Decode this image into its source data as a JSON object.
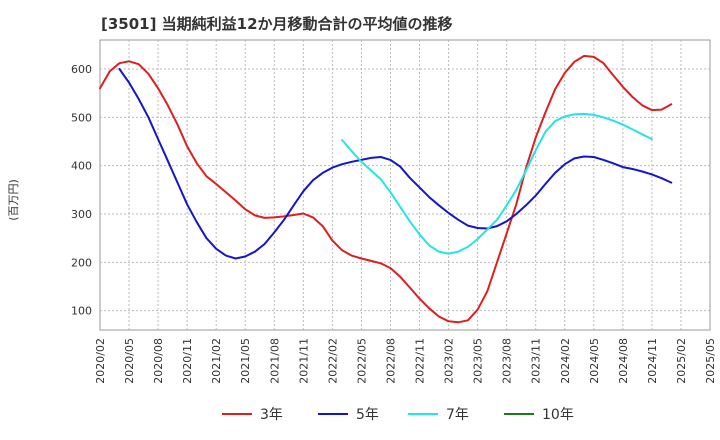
{
  "title": "[3501]  当期純利益12か月移動合計の平均値の推移",
  "chart_data": {
    "type": "line",
    "ylabel": "(百万円)",
    "ylim": [
      60,
      660
    ],
    "yticks": [
      100,
      200,
      300,
      400,
      500,
      600
    ],
    "xticks": [
      "2020/02",
      "2020/05",
      "2020/08",
      "2020/11",
      "2021/02",
      "2021/05",
      "2021/08",
      "2021/11",
      "2022/02",
      "2022/05",
      "2022/08",
      "2022/11",
      "2023/02",
      "2023/05",
      "2023/08",
      "2023/11",
      "2024/02",
      "2024/05",
      "2024/08",
      "2024/11",
      "2025/02",
      "2025/05"
    ],
    "grid": true,
    "legend_position": "bottom",
    "series": [
      {
        "name": "3年",
        "color": "#dd1f1f",
        "start": "2020/02",
        "values": [
          560,
          595,
          612,
          616,
          610,
          590,
          560,
          525,
          485,
          440,
          405,
          378,
          362,
          345,
          328,
          310,
          297,
          292,
          293,
          295,
          298,
          301,
          293,
          275,
          245,
          225,
          214,
          208,
          203,
          198,
          188,
          170,
          148,
          125,
          105,
          88,
          78,
          76,
          80,
          102,
          140,
          200,
          260,
          320,
          395,
          458,
          510,
          558,
          592,
          615,
          627,
          625,
          612,
          587,
          563,
          542,
          525,
          515,
          516,
          527
        ]
      },
      {
        "name": "5年",
        "color": "#1515cc",
        "start": "2020/02",
        "values": [
          null,
          null,
          600,
          572,
          538,
          500,
          455,
          410,
          365,
          320,
          283,
          250,
          228,
          214,
          208,
          212,
          222,
          238,
          262,
          288,
          318,
          347,
          370,
          385,
          396,
          403,
          408,
          412,
          416,
          418,
          412,
          398,
          375,
          355,
          335,
          318,
          302,
          288,
          276,
          271,
          270,
          275,
          285,
          300,
          318,
          338,
          362,
          385,
          403,
          415,
          419,
          418,
          412,
          405,
          397,
          393,
          388,
          382,
          374,
          365
        ]
      },
      {
        "name": "7年",
        "color": "#22e5e5",
        "start": "2020/02",
        "values": [
          null,
          null,
          null,
          null,
          null,
          null,
          null,
          null,
          null,
          null,
          null,
          null,
          null,
          null,
          null,
          null,
          null,
          null,
          null,
          null,
          null,
          null,
          null,
          null,
          null,
          453,
          430,
          408,
          390,
          372,
          345,
          315,
          285,
          258,
          235,
          222,
          218,
          222,
          232,
          248,
          268,
          288,
          318,
          350,
          390,
          432,
          470,
          492,
          502,
          506,
          507,
          505,
          500,
          493,
          485,
          475,
          465,
          455
        ]
      },
      {
        "name": "10年",
        "color": "#1d7a1d",
        "start": "2020/02",
        "values": []
      }
    ]
  }
}
